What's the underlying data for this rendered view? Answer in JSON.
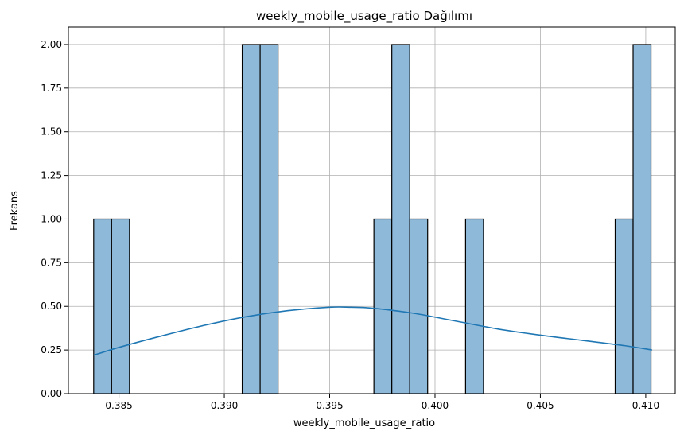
{
  "chart_data": {
    "type": "bar",
    "subtype": "histogram_with_kde",
    "title": "weekly_mobile_usage_ratio Dağılımı",
    "xlabel": "weekly_mobile_usage_ratio",
    "ylabel": "Frekans",
    "xlim": [
      0.3826,
      0.4114
    ],
    "ylim": [
      0.0,
      2.1
    ],
    "grid": true,
    "bar_color": "#8fb9d9",
    "kde_color": "#1f77b4",
    "x_ticks": [
      {
        "value": 0.385,
        "label": "0.385"
      },
      {
        "value": 0.39,
        "label": "0.390"
      },
      {
        "value": 0.395,
        "label": "0.395"
      },
      {
        "value": 0.4,
        "label": "0.400"
      },
      {
        "value": 0.405,
        "label": "0.405"
      },
      {
        "value": 0.41,
        "label": "0.410"
      }
    ],
    "y_ticks": [
      {
        "value": 0.0,
        "label": "0.00"
      },
      {
        "value": 0.25,
        "label": "0.25"
      },
      {
        "value": 0.5,
        "label": "0.50"
      },
      {
        "value": 0.75,
        "label": "0.75"
      },
      {
        "value": 1.0,
        "label": "1.00"
      },
      {
        "value": 1.25,
        "label": "1.25"
      },
      {
        "value": 1.5,
        "label": "1.50"
      },
      {
        "value": 1.75,
        "label": "1.75"
      },
      {
        "value": 2.0,
        "label": "2.00"
      }
    ],
    "bins": [
      {
        "x0": 0.3838,
        "x1": 0.38465,
        "count": 1
      },
      {
        "x0": 0.38465,
        "x1": 0.3855,
        "count": 1
      },
      {
        "x0": 0.39085,
        "x1": 0.3917,
        "count": 2
      },
      {
        "x0": 0.3917,
        "x1": 0.39255,
        "count": 2
      },
      {
        "x0": 0.3971,
        "x1": 0.39795,
        "count": 1
      },
      {
        "x0": 0.39795,
        "x1": 0.3988,
        "count": 2
      },
      {
        "x0": 0.3988,
        "x1": 0.39965,
        "count": 1
      },
      {
        "x0": 0.40145,
        "x1": 0.4023,
        "count": 1
      },
      {
        "x0": 0.40855,
        "x1": 0.4094,
        "count": 1
      },
      {
        "x0": 0.4094,
        "x1": 0.41025,
        "count": 2
      }
    ],
    "kde": {
      "x": [
        0.3838,
        0.385,
        0.387,
        0.389,
        0.391,
        0.393,
        0.395,
        0.396,
        0.397,
        0.399,
        0.401,
        0.403,
        0.405,
        0.407,
        0.409,
        0.4103
      ],
      "y": [
        0.22,
        0.265,
        0.33,
        0.39,
        0.44,
        0.475,
        0.495,
        0.495,
        0.49,
        0.46,
        0.415,
        0.37,
        0.335,
        0.305,
        0.275,
        0.25
      ]
    }
  }
}
